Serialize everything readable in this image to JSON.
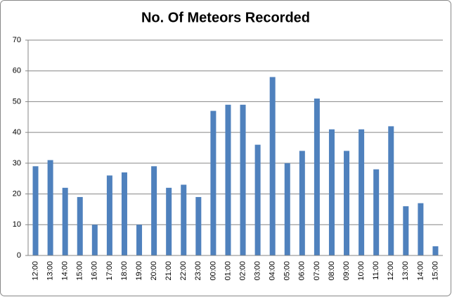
{
  "chart_data": {
    "type": "bar",
    "title": "No. Of Meteors Recorded",
    "categories": [
      "12:00",
      "13:00",
      "14:00",
      "15:00",
      "16:00",
      "17:00",
      "18:00",
      "19:00",
      "20:00",
      "21:00",
      "22:00",
      "23:00",
      "00:00",
      "01:00",
      "02:00",
      "03:00",
      "04:00",
      "05:00",
      "06:00",
      "07:00",
      "08:00",
      "09:00",
      "10:00",
      "11:00",
      "12:00",
      "13:00",
      "14:00",
      "15:00"
    ],
    "values": [
      29,
      31,
      22,
      19,
      10,
      26,
      27,
      10,
      29,
      22,
      23,
      19,
      47,
      49,
      49,
      36,
      58,
      30,
      34,
      51,
      41,
      34,
      41,
      28,
      42,
      16,
      17,
      3
    ],
    "color": "#4f81bd",
    "ylim": [
      0,
      70
    ],
    "yticks": [
      0,
      10,
      20,
      30,
      40,
      50,
      60,
      70
    ],
    "grid": true
  }
}
